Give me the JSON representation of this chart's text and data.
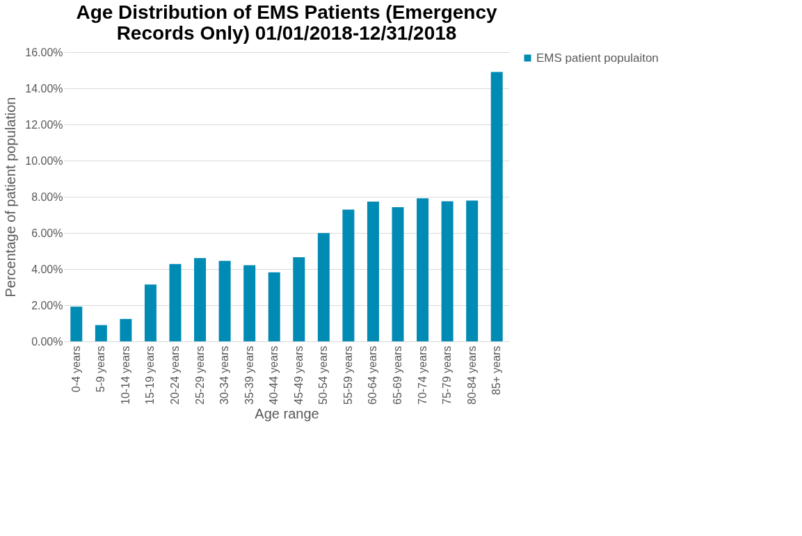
{
  "chart_data": {
    "type": "bar",
    "title": [
      "Age Distribution of EMS Patients (Emergency",
      "Records Only) 01/01/2018-12/31/2018"
    ],
    "xlabel": "Age range",
    "ylabel": "Percentage of patient population",
    "categories": [
      "0-4 years",
      "5-9 years",
      "10-14 years",
      "15-19 years",
      "20-24 years",
      "25-29 years",
      "30-34 years",
      "35-39 years",
      "40-44 years",
      "45-49 years",
      "50-54 years",
      "55-59 years",
      "60-64 years",
      "65-69 years",
      "70-74 years",
      "75-79 years",
      "80-84 years",
      "85+ years"
    ],
    "series": [
      {
        "name": "EMS patient populaiton",
        "color": "#008bb5",
        "values": [
          1.92,
          0.9,
          1.24,
          3.14,
          4.28,
          4.61,
          4.45,
          4.21,
          3.82,
          4.65,
          5.99,
          7.29,
          7.73,
          7.42,
          7.91,
          7.75,
          7.79,
          14.9
        ]
      }
    ],
    "ylim": [
      0,
      16
    ],
    "yticks": [
      {
        "value": 0,
        "label": "0.00%"
      },
      {
        "value": 2,
        "label": "2.00%"
      },
      {
        "value": 4,
        "label": "4.00%"
      },
      {
        "value": 6,
        "label": "6.00%"
      },
      {
        "value": 8,
        "label": "8.00%"
      },
      {
        "value": 10,
        "label": "10.00%"
      },
      {
        "value": 12,
        "label": "12.00%"
      },
      {
        "value": 14,
        "label": "14.00%"
      },
      {
        "value": 16,
        "label": "16.00%"
      }
    ],
    "grid": "y",
    "legend": "right"
  }
}
